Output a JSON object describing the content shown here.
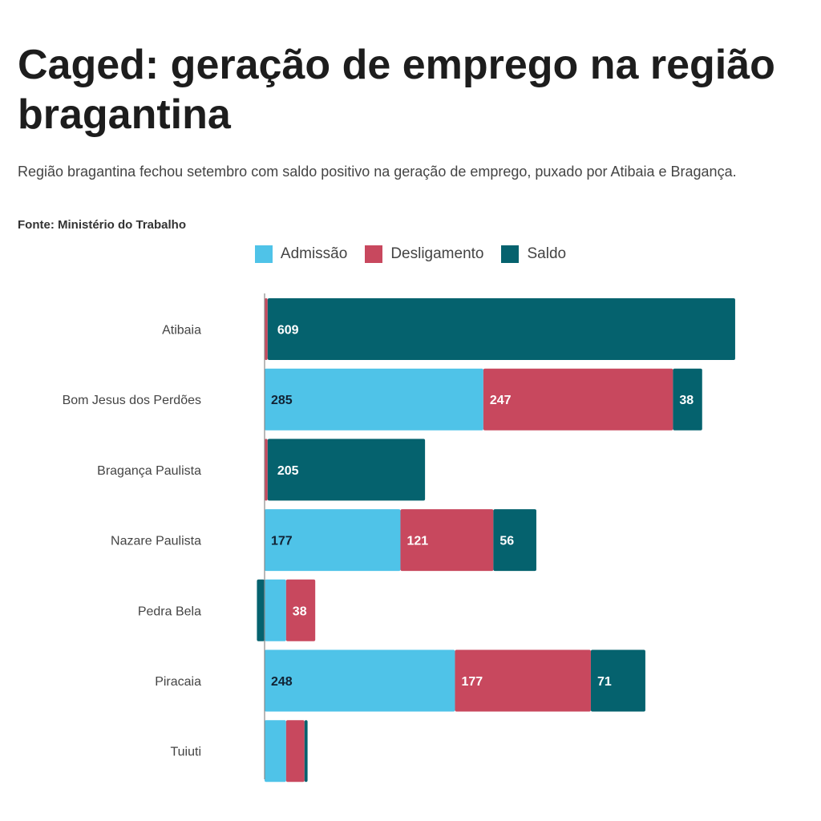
{
  "title": "Caged: geração de emprego na região bragantina",
  "subtitle": "Região bragantina fechou setembro com saldo positivo na geração de emprego, puxado por Atibaia e Bragança.",
  "source": "Fonte: Ministério do Trabalho",
  "chart_data": {
    "type": "bar",
    "orientation": "horizontal",
    "stacked": true,
    "categories": [
      "Atibaia",
      "Bom Jesus dos Perdões",
      "Bragança Paulista",
      "Nazare Paulista",
      "Pedra Bela",
      "Piracaia",
      "Tuiuti"
    ],
    "series": [
      {
        "name": "Admissão",
        "color": "#4fc3e8",
        "values": [
          0,
          285,
          0,
          177,
          28,
          248,
          28
        ]
      },
      {
        "name": "Desligamento",
        "color": "#c8485e",
        "values": [
          4,
          247,
          4,
          121,
          38,
          177,
          24
        ]
      },
      {
        "name": "Saldo",
        "color": "#05626e",
        "values": [
          609,
          38,
          205,
          56,
          -10,
          71,
          4
        ]
      }
    ],
    "data_labels": [
      [
        null,
        "285",
        null,
        "177",
        null,
        "248",
        null
      ],
      [
        null,
        "247",
        null,
        "121",
        "38",
        "177",
        null
      ],
      [
        "609",
        "38",
        "205",
        "56",
        null,
        "71",
        null
      ]
    ],
    "legend_position": "top",
    "grid": false
  }
}
